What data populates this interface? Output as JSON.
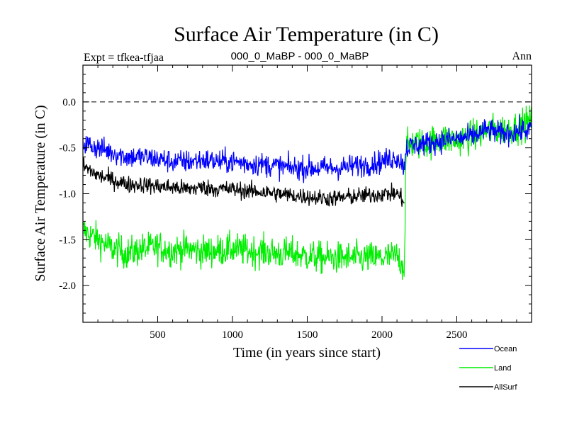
{
  "chart_data": {
    "type": "line",
    "title": "Surface Air Temperature (in C)",
    "header_left": "Expt = tfkea-tfjaa",
    "header_center": "000_0_MaBP - 000_0_MaBP",
    "header_right": "Ann",
    "xlabel": "Time (in years since start)",
    "ylabel": "Surface Air Temperature (in C)",
    "xlim": [
      0,
      3000
    ],
    "ylim": [
      -2.4,
      0.4
    ],
    "x_ticks": [
      500,
      1000,
      1500,
      2000,
      2500
    ],
    "x_tick_labels": [
      "500",
      "1000",
      "1500",
      "2000",
      "2500"
    ],
    "y_ticks": [
      0.0,
      -0.5,
      -1.0,
      -1.5,
      -2.0
    ],
    "y_tick_labels": [
      "0.0",
      "-0.5",
      "-1.0",
      "-1.5",
      "-2.0"
    ],
    "zero_line": true,
    "grid": false,
    "legend_position": "bottom-right",
    "series": [
      {
        "name": "Ocean",
        "color": "#0000ff",
        "x": [
          0,
          100,
          200,
          300,
          400,
          500,
          600,
          700,
          800,
          900,
          1000,
          1100,
          1200,
          1300,
          1400,
          1500,
          1600,
          1700,
          1800,
          1900,
          2000,
          2100,
          2150,
          2160,
          2200,
          2300,
          2400,
          2500,
          2600,
          2700,
          2800,
          2900,
          3000
        ],
        "values": [
          -0.45,
          -0.5,
          -0.55,
          -0.6,
          -0.6,
          -0.62,
          -0.65,
          -0.65,
          -0.63,
          -0.65,
          -0.65,
          -0.67,
          -0.68,
          -0.7,
          -0.72,
          -0.72,
          -0.72,
          -0.72,
          -0.7,
          -0.68,
          -0.65,
          -0.6,
          -0.7,
          -0.5,
          -0.48,
          -0.45,
          -0.42,
          -0.4,
          -0.38,
          -0.3,
          -0.35,
          -0.32,
          -0.3
        ]
      },
      {
        "name": "Land",
        "color": "#00ee00",
        "x": [
          0,
          100,
          200,
          300,
          400,
          500,
          600,
          700,
          800,
          900,
          1000,
          1100,
          1200,
          1300,
          1400,
          1500,
          1600,
          1700,
          1800,
          1900,
          2000,
          2100,
          2150,
          2160,
          2200,
          2300,
          2400,
          2500,
          2600,
          2700,
          2800,
          2900,
          3000
        ],
        "values": [
          -1.4,
          -1.5,
          -1.6,
          -1.65,
          -1.6,
          -1.58,
          -1.62,
          -1.6,
          -1.63,
          -1.62,
          -1.6,
          -1.62,
          -1.63,
          -1.65,
          -1.65,
          -1.68,
          -1.7,
          -1.7,
          -1.7,
          -1.7,
          -1.7,
          -1.68,
          -1.8,
          -0.5,
          -0.45,
          -0.45,
          -0.4,
          -0.42,
          -0.38,
          -0.32,
          -0.3,
          -0.28,
          -0.2
        ]
      },
      {
        "name": "AllSurf",
        "color": "#000000",
        "x": [
          0,
          100,
          200,
          300,
          400,
          500,
          600,
          700,
          800,
          900,
          1000,
          1100,
          1200,
          1300,
          1400,
          1500,
          1600,
          1700,
          1800,
          1900,
          2000,
          2100,
          2150
        ],
        "values": [
          -0.7,
          -0.8,
          -0.85,
          -0.9,
          -0.9,
          -0.92,
          -0.93,
          -0.95,
          -0.93,
          -0.95,
          -0.95,
          -0.97,
          -0.98,
          -1.0,
          -1.02,
          -1.03,
          -1.05,
          -1.05,
          -1.03,
          -1.02,
          -1.0,
          -1.0,
          -1.08
        ]
      }
    ]
  }
}
